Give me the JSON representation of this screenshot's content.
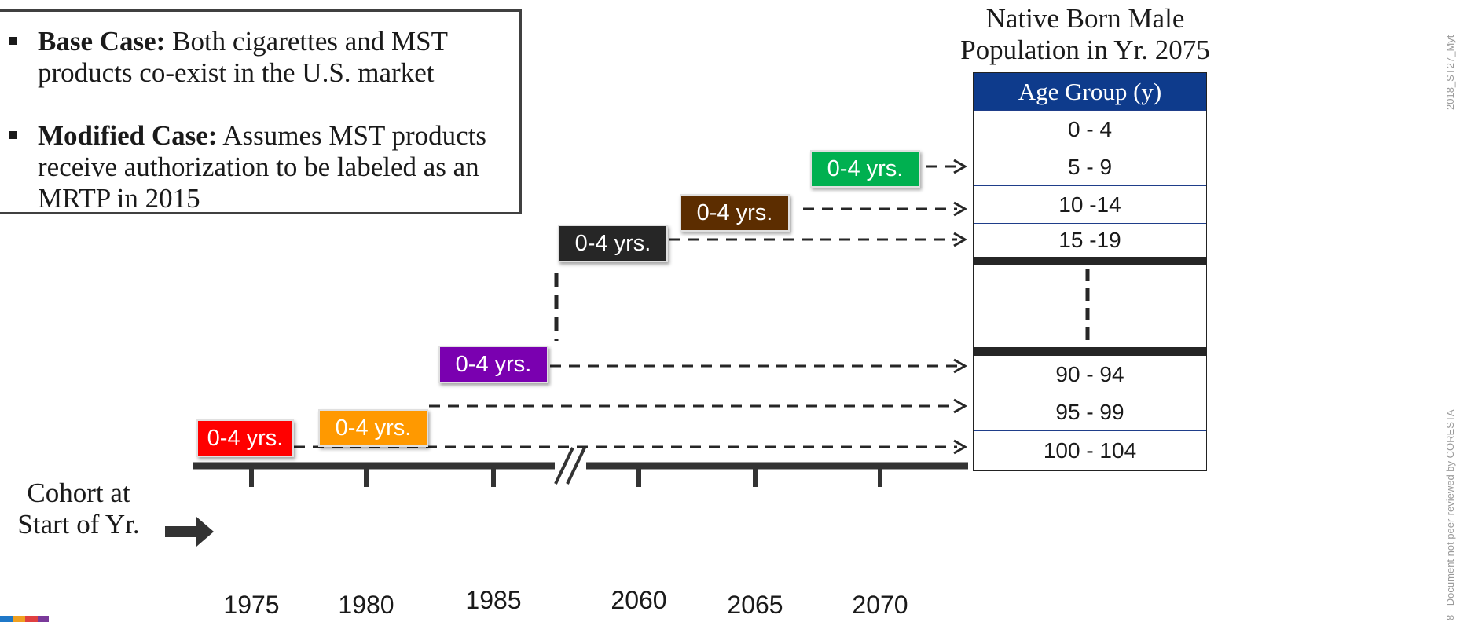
{
  "legend": {
    "base_case_bold": "Base Case:",
    "base_case_text": " Both cigarettes and MST products co-exist in the U.S. market",
    "modified_case_bold": "Modified Case:",
    "modified_case_text": " Assumes MST products receive authorization to be labeled as an MRTP in 2015"
  },
  "cohorts": [
    {
      "label": "0-4 yrs.",
      "color": "#ff0000"
    },
    {
      "label": "0-4 yrs.",
      "color": "#ff9900"
    },
    {
      "label": "0-4 yrs.",
      "color": "#7a00b0"
    },
    {
      "label": "0-4 yrs.",
      "color": "#262626"
    },
    {
      "label": "0-4 yrs.",
      "color": "#5c2d00"
    },
    {
      "label": "0-4 yrs.",
      "color": "#00b050"
    }
  ],
  "population": {
    "title_line1": "Native Born Male",
    "title_line2": "Population in Yr. 2075",
    "header": "Age Group (y)",
    "rows": [
      "0 - 4",
      "5 - 9",
      "10 -14",
      "15 -19",
      "90 - 94",
      "95 - 99",
      "100 - 104"
    ]
  },
  "axis": {
    "label_line1": "Cohort at",
    "label_line2": "Start of Yr.",
    "years": [
      "1975",
      "1980",
      "1985",
      "2060",
      "2065",
      "2070"
    ]
  },
  "watermark": {
    "right_top": "2018_ST27_Myt",
    "right_bottom": "8 - Document not peer-reviewed by CORESTA"
  }
}
